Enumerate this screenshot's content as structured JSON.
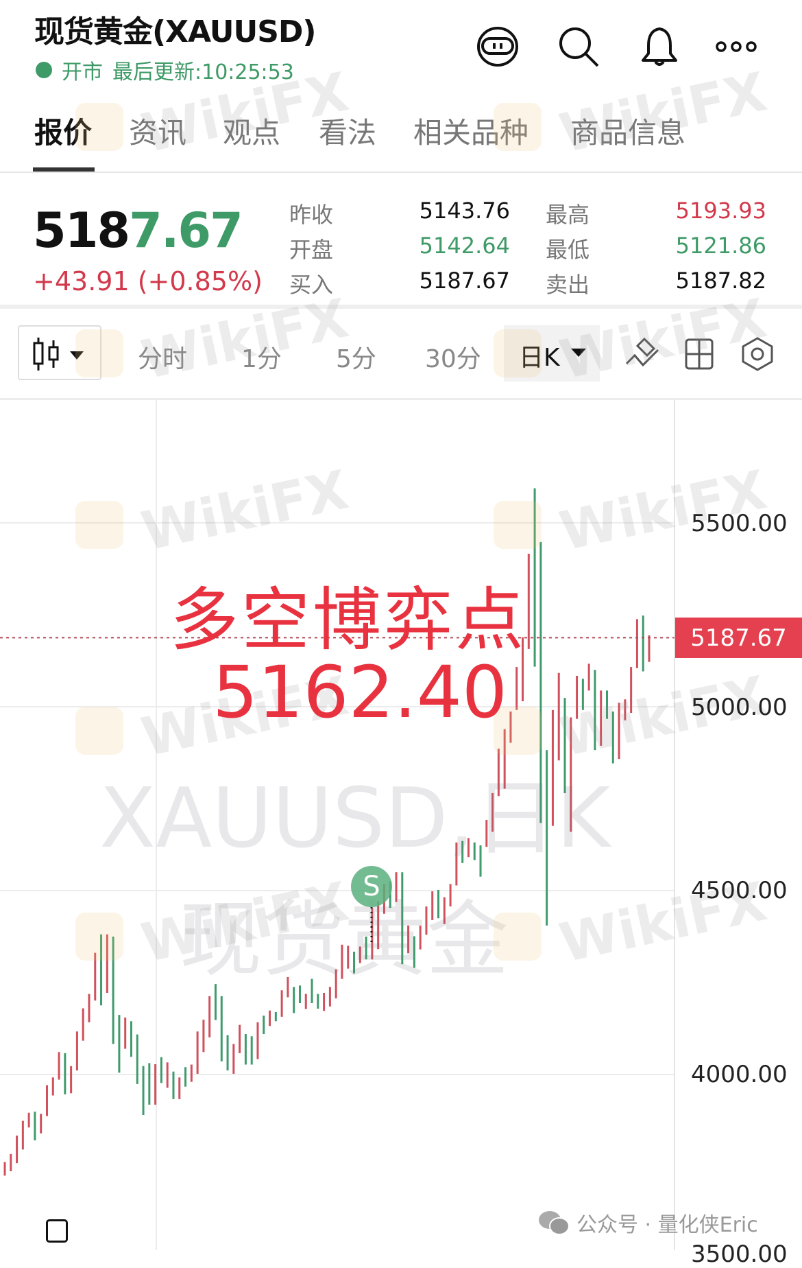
{
  "header": {
    "title": "现货黄金(XAUUSD)",
    "market_status": "开市",
    "last_update_label": "最后更新:10:25:53",
    "icons": [
      "robot-assistant-icon",
      "search-icon",
      "bell-icon",
      "more-icon"
    ]
  },
  "tabs": [
    {
      "label": "报价",
      "active": true
    },
    {
      "label": "资讯",
      "active": false
    },
    {
      "label": "观点",
      "active": false
    },
    {
      "label": "看法",
      "active": false
    },
    {
      "label": "相关品种",
      "active": false
    },
    {
      "label": "商品信息",
      "active": false
    }
  ],
  "quote": {
    "price_prefix": "518",
    "price_suffix": "7.67",
    "change": "+43.91 (+0.85%)",
    "stats": [
      {
        "label": "昨收",
        "value": "5143.76",
        "color": "#111111"
      },
      {
        "label": "最高",
        "value": "5193.93",
        "color": "#d2394b"
      },
      {
        "label": "开盘",
        "value": "5142.64",
        "color": "#3e9a66"
      },
      {
        "label": "最低",
        "value": "5121.86",
        "color": "#3e9a66"
      },
      {
        "label": "买入",
        "value": "5187.67",
        "color": "#111111"
      },
      {
        "label": "卖出",
        "value": "5187.82",
        "color": "#111111"
      }
    ]
  },
  "toolbar": {
    "chart_type_icon": "candlestick-icon",
    "periods": [
      "分时",
      "1分",
      "5分",
      "30分"
    ],
    "selected_period": "日K",
    "icons": [
      "draw-tool-icon",
      "layout-grid-icon",
      "settings-hex-icon"
    ]
  },
  "chart": {
    "watermark_symbol": "XAUUSD,日K",
    "watermark_name": "现货黄金",
    "brand_watermark": "WikiFX",
    "annotation_title": "多空博弈点",
    "annotation_value": "5162.40",
    "signal_marker": "S",
    "current_price_tag": "5187.67",
    "y_labels": [
      "5500.00",
      "5000.00",
      "4500.00",
      "4000.00",
      "3500.00"
    ]
  },
  "chart_data": {
    "type": "candlestick",
    "timeframe": "日K",
    "ylim": [
      3300,
      5700
    ],
    "yticks": [
      3500,
      4000,
      4500,
      5000,
      5500
    ],
    "grid": true,
    "current_price": 5187.67,
    "reference_level": 5162.4,
    "colors": {
      "up": "#d0505c",
      "down": "#3f9a6c"
    },
    "columns": [
      "high",
      "low",
      "up"
    ],
    "candles": [
      [
        3762,
        3725,
        1
      ],
      [
        3784,
        3737,
        1
      ],
      [
        3834,
        3759,
        1
      ],
      [
        3874,
        3796,
        1
      ],
      [
        3896,
        3856,
        1
      ],
      [
        3899,
        3821,
        0
      ],
      [
        3893,
        3840,
        1
      ],
      [
        3971,
        3887,
        1
      ],
      [
        3992,
        3943,
        1
      ],
      [
        4061,
        3986,
        1
      ],
      [
        4058,
        3946,
        0
      ],
      [
        4023,
        3949,
        1
      ],
      [
        4117,
        4011,
        1
      ],
      [
        4180,
        4092,
        1
      ],
      [
        4219,
        4142,
        1
      ],
      [
        4331,
        4201,
        1
      ],
      [
        4381,
        4188,
        0
      ],
      [
        4381,
        4222,
        1
      ],
      [
        4375,
        4083,
        0
      ],
      [
        4162,
        4005,
        0
      ],
      [
        4155,
        4070,
        1
      ],
      [
        4145,
        4048,
        0
      ],
      [
        4109,
        3974,
        0
      ],
      [
        4023,
        3890,
        0
      ],
      [
        4031,
        3918,
        0
      ],
      [
        4028,
        3918,
        1
      ],
      [
        4047,
        3977,
        0
      ],
      [
        4033,
        3964,
        1
      ],
      [
        4008,
        3933,
        0
      ],
      [
        3992,
        3933,
        1
      ],
      [
        4020,
        3967,
        0
      ],
      [
        4027,
        3980,
        1
      ],
      [
        4117,
        4002,
        1
      ],
      [
        4149,
        4061,
        1
      ],
      [
        4213,
        4101,
        1
      ],
      [
        4246,
        4148,
        0
      ],
      [
        4213,
        4036,
        0
      ],
      [
        4107,
        4011,
        0
      ],
      [
        4083,
        4002,
        1
      ],
      [
        4135,
        4058,
        1
      ],
      [
        4110,
        4027,
        0
      ],
      [
        4104,
        4027,
        0
      ],
      [
        4142,
        4042,
        1
      ],
      [
        4160,
        4110,
        0
      ],
      [
        4174,
        4132,
        1
      ],
      [
        4170,
        4145,
        0
      ],
      [
        4229,
        4157,
        1
      ],
      [
        4265,
        4210,
        1
      ],
      [
        4238,
        4167,
        0
      ],
      [
        4242,
        4194,
        0
      ],
      [
        4219,
        4178,
        1
      ],
      [
        4260,
        4194,
        0
      ],
      [
        4219,
        4179,
        0
      ],
      [
        4222,
        4173,
        1
      ],
      [
        4238,
        4185,
        1
      ],
      [
        4286,
        4207,
        1
      ],
      [
        4353,
        4260,
        1
      ],
      [
        4350,
        4288,
        1
      ],
      [
        4334,
        4275,
        0
      ],
      [
        4348,
        4303,
        1
      ],
      [
        4375,
        4313,
        0
      ],
      [
        4453,
        4313,
        1
      ],
      [
        4471,
        4341,
        1
      ],
      [
        4518,
        4437,
        1
      ],
      [
        4526,
        4453,
        0
      ],
      [
        4550,
        4469,
        1
      ],
      [
        4550,
        4300,
        0
      ],
      [
        4405,
        4330,
        1
      ],
      [
        4376,
        4290,
        0
      ],
      [
        4405,
        4340,
        1
      ],
      [
        4457,
        4380,
        1
      ],
      [
        4498,
        4420,
        1
      ],
      [
        4502,
        4425,
        0
      ],
      [
        4482,
        4409,
        1
      ],
      [
        4518,
        4457,
        1
      ],
      [
        4631,
        4514,
        1
      ],
      [
        4635,
        4575,
        0
      ],
      [
        4643,
        4591,
        1
      ],
      [
        4631,
        4583,
        0
      ],
      [
        4623,
        4538,
        0
      ],
      [
        4692,
        4619,
        1
      ],
      [
        4765,
        4660,
        1
      ],
      [
        4886,
        4757,
        1
      ],
      [
        4939,
        4777,
        1
      ],
      [
        4987,
        4902,
        1
      ],
      [
        5108,
        4991,
        1
      ],
      [
        5189,
        5015,
        1
      ],
      [
        5416,
        5157,
        1
      ],
      [
        5594,
        5109,
        0
      ],
      [
        5448,
        4684,
        0
      ],
      [
        4882,
        4405,
        0
      ],
      [
        4991,
        4676,
        1
      ],
      [
        5092,
        4854,
        1
      ],
      [
        5024,
        4765,
        0
      ],
      [
        4971,
        4660,
        1
      ],
      [
        5084,
        4967,
        1
      ],
      [
        5076,
        4991,
        0
      ],
      [
        5117,
        5044,
        1
      ],
      [
        5100,
        4882,
        0
      ],
      [
        5044,
        4894,
        1
      ],
      [
        5044,
        4967,
        0
      ],
      [
        4987,
        4846,
        0
      ],
      [
        5011,
        4858,
        1
      ],
      [
        5020,
        4963,
        1
      ],
      [
        5108,
        4983,
        1
      ],
      [
        5238,
        5105,
        1
      ],
      [
        5248,
        5096,
        0
      ],
      [
        5193.93,
        5121.86,
        1
      ]
    ]
  },
  "footer": {
    "source_watermark": "公众号 · 量化侠Eric"
  }
}
